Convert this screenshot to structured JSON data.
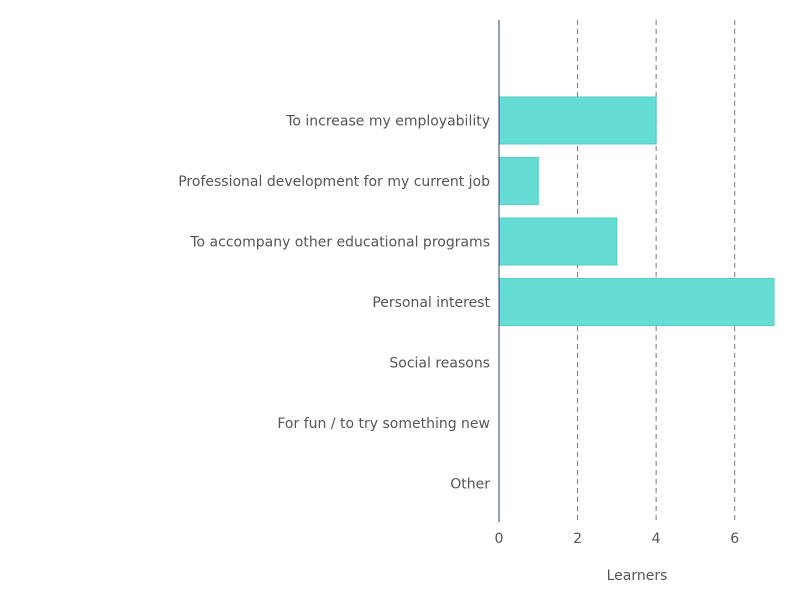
{
  "chart_data": {
    "type": "bar",
    "orientation": "horizontal",
    "title": "",
    "xlabel": "Learners",
    "ylabel": "",
    "categories": [
      "",
      "To increase my employability",
      "Professional development for my current job",
      "To accompany other educational programs",
      "Personal interest",
      "Social reasons",
      "For fun / to try something new",
      "Other"
    ],
    "values": [
      0,
      4,
      1,
      3,
      7,
      0,
      0,
      0
    ],
    "xlim": [
      0,
      7
    ],
    "xticks": [
      0,
      2,
      4,
      6
    ],
    "tick_labels": [
      "0",
      "2",
      "4",
      "6"
    ],
    "grid": "vertical dashed",
    "legend": "none",
    "colors": {
      "bar_fill": "#66ddd4",
      "bar_stroke": "#4fcfc5",
      "grid": "#777777",
      "axis": "#2a3a7a",
      "text": "#555555"
    }
  }
}
